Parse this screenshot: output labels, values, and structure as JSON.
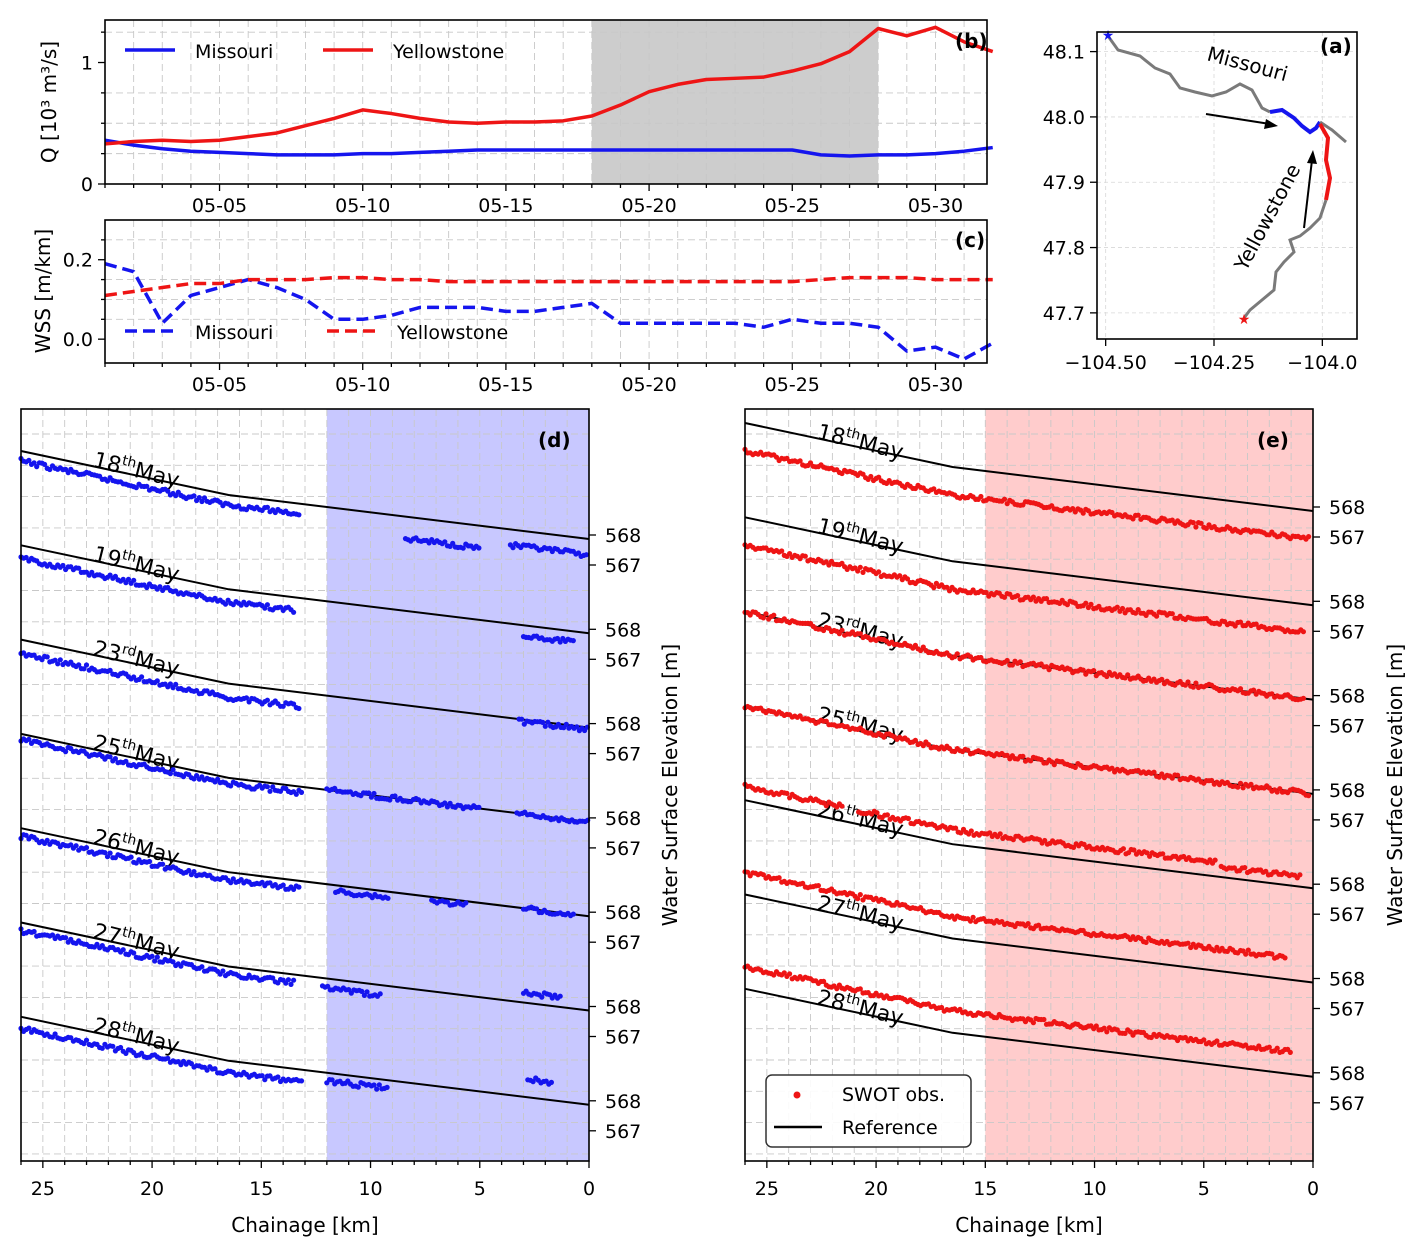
{
  "colors": {
    "missouri": "#1515ee",
    "yellowstone": "#ee1515",
    "reference": "#000000",
    "map_river": "#7a7a7a",
    "highlight_gray": "#cdcdcd",
    "highlight_blue": "#c8c8ff",
    "highlight_red": "#ffcccc"
  },
  "panel_b": {
    "label": "(b)",
    "ylabel": "Q [10³ m³/s]",
    "yticks": [
      "0",
      "1"
    ],
    "xticks": [
      "05-05",
      "05-10",
      "05-15",
      "05-20",
      "05-25",
      "05-30"
    ],
    "legend": [
      "Missouri",
      "Yellowstone"
    ]
  },
  "panel_c": {
    "label": "(c)",
    "ylabel": "WSS [m/km]",
    "yticks": [
      "0.0",
      "0.2"
    ],
    "xticks": [
      "05-05",
      "05-10",
      "05-15",
      "05-20",
      "05-25",
      "05-30"
    ],
    "legend": [
      "Missouri",
      "Yellowstone"
    ]
  },
  "panel_a": {
    "label": "(a)",
    "yticks": [
      "48.1",
      "48.0",
      "47.9",
      "47.8",
      "47.7"
    ],
    "xticks": [
      "−104.50",
      "−104.25",
      "−104.0"
    ],
    "river_labels": [
      "Missouri",
      "Yellowstone"
    ]
  },
  "panel_d": {
    "label": "(d)",
    "xlabel": "Chainage [km]",
    "xticks": [
      "25",
      "20",
      "15",
      "10",
      "5",
      "0"
    ],
    "dates": [
      "18",
      "19",
      "23",
      "25",
      "26",
      "27",
      "28"
    ],
    "date_sup": [
      "th",
      "th",
      "rd",
      "th",
      "th",
      "th",
      "th"
    ],
    "date_month": "May"
  },
  "panel_e": {
    "label": "(e)",
    "xlabel": "Chainage [km]",
    "xticks": [
      "25",
      "20",
      "15",
      "10",
      "5",
      "0"
    ],
    "dates": [
      "18",
      "19",
      "23",
      "25",
      "26",
      "27",
      "28"
    ],
    "date_sup": [
      "th",
      "th",
      "rd",
      "th",
      "th",
      "th",
      "th"
    ],
    "date_month": "May",
    "legend": [
      "SWOT obs.",
      "Reference"
    ]
  },
  "right_axis": {
    "ylabel": "Water Surface Elevation [m]",
    "tick_pair": [
      "568",
      "567"
    ]
  },
  "chart_data": [
    {
      "panel": "b",
      "type": "line",
      "x_type": "date",
      "xlim": [
        "05-01",
        "05-31"
      ],
      "ylim": [
        0,
        1.35
      ],
      "ylabel": "Q [10³ m³/s]",
      "highlight": [
        "05-18",
        "05-28"
      ],
      "legend_position": "top-left",
      "grid": true,
      "x": [
        "05-01",
        "05-02",
        "05-03",
        "05-04",
        "05-05",
        "05-06",
        "05-07",
        "05-08",
        "05-09",
        "05-10",
        "05-11",
        "05-12",
        "05-13",
        "05-14",
        "05-15",
        "05-16",
        "05-17",
        "05-18",
        "05-19",
        "05-20",
        "05-21",
        "05-22",
        "05-23",
        "05-24",
        "05-25",
        "05-26",
        "05-27",
        "05-28",
        "05-29",
        "05-30",
        "05-31",
        "06-01"
      ],
      "series": [
        {
          "name": "Missouri",
          "values": [
            0.36,
            0.32,
            0.29,
            0.27,
            0.26,
            0.25,
            0.24,
            0.24,
            0.24,
            0.25,
            0.25,
            0.26,
            0.27,
            0.28,
            0.28,
            0.28,
            0.28,
            0.28,
            0.28,
            0.28,
            0.28,
            0.28,
            0.28,
            0.28,
            0.28,
            0.24,
            0.23,
            0.24,
            0.24,
            0.25,
            0.27,
            0.3
          ]
        },
        {
          "name": "Yellowstone",
          "values": [
            0.33,
            0.35,
            0.36,
            0.35,
            0.36,
            0.39,
            0.42,
            0.48,
            0.54,
            0.61,
            0.58,
            0.54,
            0.51,
            0.5,
            0.51,
            0.51,
            0.52,
            0.56,
            0.65,
            0.76,
            0.82,
            0.86,
            0.87,
            0.88,
            0.93,
            0.99,
            1.09,
            1.28,
            1.22,
            1.29,
            1.17,
            1.09
          ]
        }
      ]
    },
    {
      "panel": "c",
      "type": "line",
      "x_type": "date",
      "xlim": [
        "05-01",
        "05-31"
      ],
      "ylim": [
        -0.06,
        0.3
      ],
      "ylabel": "WSS [m/km]",
      "legend_position": "bottom-left",
      "grid": true,
      "x": [
        "05-01",
        "05-02",
        "05-03",
        "05-04",
        "05-05",
        "05-06",
        "05-07",
        "05-08",
        "05-09",
        "05-10",
        "05-11",
        "05-12",
        "05-13",
        "05-14",
        "05-15",
        "05-16",
        "05-17",
        "05-18",
        "05-19",
        "05-20",
        "05-21",
        "05-22",
        "05-23",
        "05-24",
        "05-25",
        "05-26",
        "05-27",
        "05-28",
        "05-29",
        "05-30",
        "05-31",
        "06-01"
      ],
      "series": [
        {
          "name": "Missouri",
          "values": [
            0.19,
            0.17,
            0.04,
            0.11,
            0.13,
            0.15,
            0.13,
            0.1,
            0.05,
            0.05,
            0.06,
            0.08,
            0.08,
            0.08,
            0.07,
            0.07,
            0.08,
            0.09,
            0.04,
            0.04,
            0.04,
            0.04,
            0.04,
            0.03,
            0.05,
            0.04,
            0.04,
            0.03,
            -0.03,
            -0.02,
            -0.05,
            -0.01
          ]
        },
        {
          "name": "Yellowstone",
          "values": [
            0.11,
            0.12,
            0.13,
            0.14,
            0.14,
            0.15,
            0.15,
            0.15,
            0.155,
            0.155,
            0.15,
            0.15,
            0.145,
            0.145,
            0.145,
            0.145,
            0.145,
            0.145,
            0.145,
            0.145,
            0.145,
            0.145,
            0.145,
            0.145,
            0.145,
            0.15,
            0.155,
            0.155,
            0.155,
            0.15,
            0.15,
            0.15
          ]
        }
      ]
    },
    {
      "panel": "d",
      "type": "scatter",
      "river": "Missouri",
      "xlabel": "Chainage [km]",
      "xlim": [
        26,
        0
      ],
      "highlight": [
        12,
        0
      ],
      "profiles": [
        "18th May",
        "19th May",
        "23rd May",
        "25th May",
        "26th May",
        "27th May",
        "28th May"
      ]
    },
    {
      "panel": "e",
      "type": "scatter",
      "river": "Yellowstone",
      "xlabel": "Chainage [km]",
      "xlim": [
        26,
        0
      ],
      "highlight": [
        15,
        0
      ],
      "legend_position": "bottom-left",
      "profiles": [
        "18th May",
        "19th May",
        "23rd May",
        "25th May",
        "26th May",
        "27th May",
        "28th May"
      ]
    },
    {
      "panel": "a",
      "type": "map",
      "xlim": [
        -104.52,
        -103.92
      ],
      "ylim": [
        47.66,
        48.13
      ]
    }
  ]
}
